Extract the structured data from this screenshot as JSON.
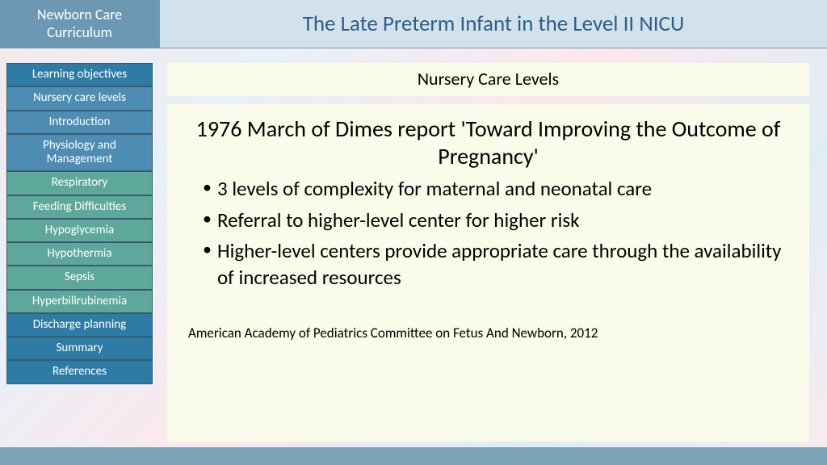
{
  "header": {
    "left_line1": "Newborn Care",
    "left_line2": "Curriculum",
    "title": "The Late Preterm Infant in the Level II NICU"
  },
  "nav": [
    {
      "label": "Learning objectives",
      "style": "nav-dark"
    },
    {
      "label": "Nursery care levels",
      "style": "nav-blue"
    },
    {
      "label": "Introduction",
      "style": "nav-blue"
    },
    {
      "label": "Physiology and Management",
      "style": "nav-blue"
    },
    {
      "label": "Respiratory",
      "style": "nav-teal"
    },
    {
      "label": "Feeding Difficulties",
      "style": "nav-teal"
    },
    {
      "label": "Hypoglycemia",
      "style": "nav-teal"
    },
    {
      "label": "Hypothermia",
      "style": "nav-teal"
    },
    {
      "label": "Sepsis",
      "style": "nav-teal"
    },
    {
      "label": "Hyperbilirubinemia",
      "style": "nav-teal"
    },
    {
      "label": "Discharge planning",
      "style": "nav-dark"
    },
    {
      "label": "Summary",
      "style": "nav-dark"
    },
    {
      "label": "References",
      "style": "nav-dark"
    }
  ],
  "slide": {
    "section_title": "Nursery Care Levels",
    "heading": "1976 March of Dimes report 'Toward Improving the Outcome of Pregnancy'",
    "bullets": [
      "3 levels of complexity for maternal and neonatal care",
      "Referral to higher-level center for higher risk",
      "Higher-level centers provide appropriate care through the availability of increased resources"
    ],
    "citation": "American Academy of Pediatrics Committee on Fetus And Newborn, 2012"
  },
  "colors": {
    "header_left_bg": "#6d98b3",
    "header_right_bg": "#d2e2ec",
    "header_title_color": "#2f5d88",
    "footer_bg": "#7aa3b8",
    "slide_bg": "#fbfbeb"
  }
}
